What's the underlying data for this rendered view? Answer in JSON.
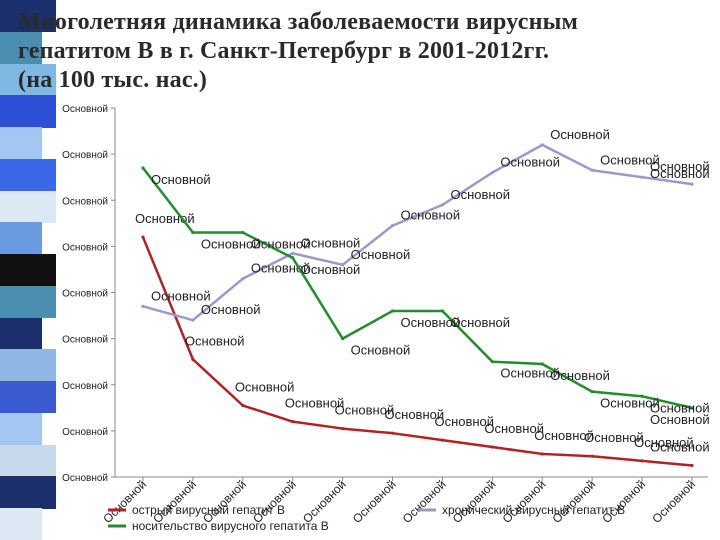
{
  "slide": {
    "title_lines": [
      "Многолетняя динамика заболеваемости вирусным",
      "гепатитом  В в г. Санкт-Петербург  в 2001-2012гг.",
      "(на 100 тыс. нас.)"
    ]
  },
  "decor": {
    "stripe_colors": [
      "#1a2f6b",
      "#4a8fb0",
      "#7fb8e0",
      "#2c4fd6",
      "#a3c7f0",
      "#3a68e8",
      "#dde8f5",
      "#6a9be0",
      "#111111",
      "#4a8fb0",
      "#1a2f6b",
      "#8fb7e6",
      "#3a5ad0",
      "#a3c7f0",
      "#c9d9ec",
      "#1a2f6b",
      "#dde8f5"
    ]
  },
  "chart_data": {
    "type": "line",
    "title": "",
    "x": [
      "Основной",
      "Основной",
      "Основной",
      "Основной",
      "Основной",
      "Основной",
      "Основной",
      "Основной",
      "Основной",
      "Основной",
      "Основной",
      "Основной"
    ],
    "y_tick_labels": [
      "Основной",
      "Основной",
      "Основной",
      "Основной",
      "Основной",
      "Основной",
      "Основной",
      "Основной",
      "Основной"
    ],
    "ylim": [
      0,
      8
    ],
    "grid": false,
    "legend_position": "bottom",
    "series": [
      {
        "name": "острый вирусный гепатит В",
        "color": "#b22222",
        "values": [
          5.2,
          2.55,
          1.55,
          1.2,
          1.05,
          0.95,
          0.8,
          0.65,
          0.5,
          0.45,
          0.35,
          0.25
        ],
        "point_labels": [
          "Основной",
          "Основной",
          "Основной",
          "Основной",
          "Основной",
          "Основной",
          "Основной",
          "Основной",
          "Основной",
          "Основной",
          "Основной",
          "Основной"
        ]
      },
      {
        "name": "хронический вирусный гепатит В",
        "color": "#9999cc",
        "values": [
          3.7,
          3.4,
          4.3,
          4.85,
          4.6,
          5.45,
          5.9,
          6.6,
          7.2,
          6.65,
          6.5,
          6.35
        ],
        "point_labels": [
          "Основной",
          "Основной",
          "Основной",
          "Основной",
          "Основной",
          "Основной",
          "Основной",
          "Основной",
          "Основной",
          "Основной",
          "Основной",
          "Основной"
        ]
      },
      {
        "name": "носительство вирусного гепатита В",
        "color": "#1f8f2a",
        "values": [
          6.7,
          5.3,
          5.3,
          4.75,
          3.0,
          3.6,
          3.6,
          2.5,
          2.45,
          1.85,
          1.75,
          1.5
        ],
        "point_labels": [
          "Основной",
          "Основной",
          "Основной",
          "Основной",
          "Основной",
          "Основной",
          "Основной",
          "Основной",
          "Основной",
          "Основной",
          "Основной",
          "Основной"
        ]
      }
    ]
  }
}
